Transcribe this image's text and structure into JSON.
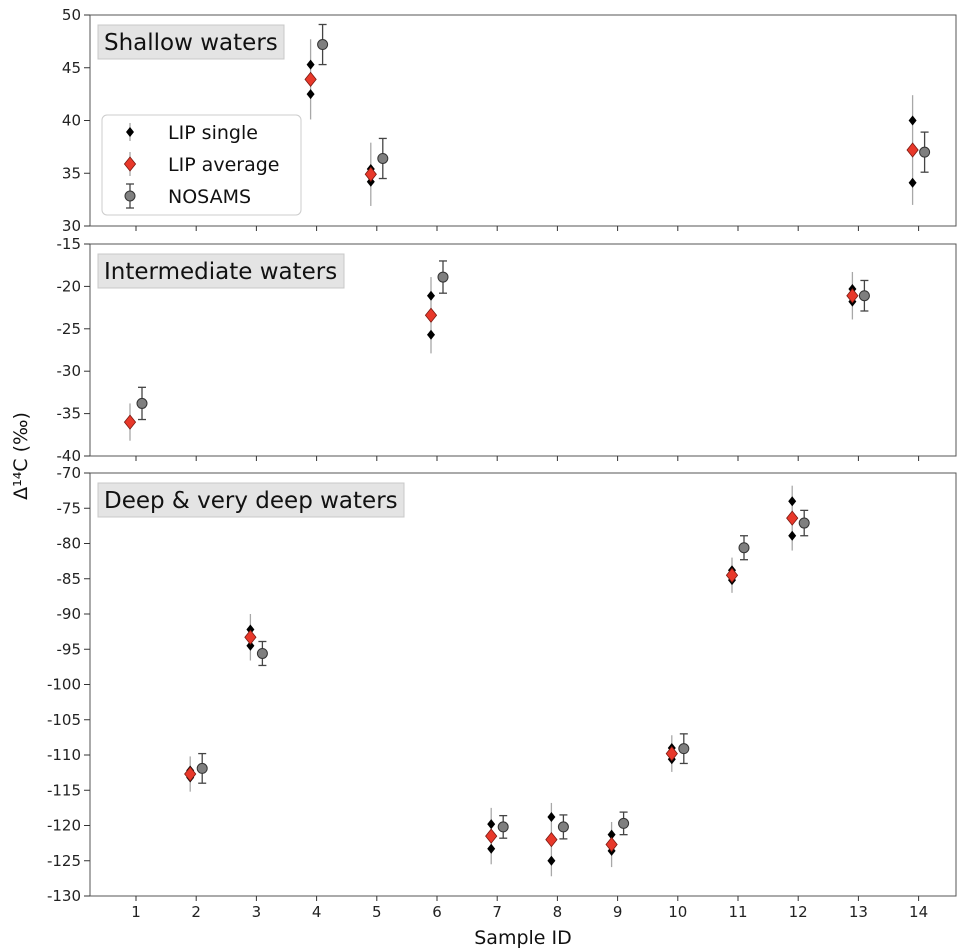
{
  "chart_data": {
    "type": "scatter",
    "xlabel": "Sample ID",
    "ylabel": "Δ¹⁴C (‰)",
    "x_ticks": [
      1,
      2,
      3,
      4,
      5,
      6,
      7,
      8,
      9,
      10,
      11,
      12,
      13,
      14
    ],
    "legend": {
      "placement": "top-left of first panel",
      "entries": [
        {
          "name": "LIP single",
          "marker": "diamond",
          "color": "#000000"
        },
        {
          "name": "LIP average",
          "marker": "diamond",
          "color": "#e8382a"
        },
        {
          "name": "NOSAMS",
          "marker": "circle",
          "color": "#808080"
        }
      ]
    },
    "panels": [
      {
        "title": "Shallow waters",
        "ylim": [
          30,
          50
        ],
        "yticks": [
          30,
          35,
          40,
          45,
          50
        ],
        "lip_single": [
          {
            "x": 4,
            "y": 45.3
          },
          {
            "x": 4,
            "y": 42.5
          },
          {
            "x": 5,
            "y": 35.4
          },
          {
            "x": 5,
            "y": 34.2
          },
          {
            "x": 14,
            "y": 40.0
          },
          {
            "x": 14,
            "y": 34.1
          }
        ],
        "lip_average": [
          {
            "x": 4,
            "y": 43.9,
            "err": 3.8
          },
          {
            "x": 5,
            "y": 34.9,
            "err": 3.0
          },
          {
            "x": 14,
            "y": 37.2,
            "err": 5.2
          }
        ],
        "nosams": [
          {
            "x": 4,
            "y": 47.2,
            "err": 1.9
          },
          {
            "x": 5,
            "y": 36.4,
            "err": 1.9
          },
          {
            "x": 14,
            "y": 37.0,
            "err": 1.9
          }
        ]
      },
      {
        "title": "Intermediate waters",
        "ylim": [
          -40,
          -15
        ],
        "yticks": [
          -40,
          -35,
          -30,
          -25,
          -20,
          -15
        ],
        "lip_single": [
          {
            "x": 1,
            "y": -36.0
          },
          {
            "x": 6,
            "y": -21.1
          },
          {
            "x": 6,
            "y": -25.7
          },
          {
            "x": 13,
            "y": -20.3
          },
          {
            "x": 13,
            "y": -21.8
          }
        ],
        "lip_average": [
          {
            "x": 1,
            "y": -36.0,
            "err": 2.2
          },
          {
            "x": 6,
            "y": -23.4,
            "err": 4.5
          },
          {
            "x": 13,
            "y": -21.1,
            "err": 2.8
          }
        ],
        "nosams": [
          {
            "x": 1,
            "y": -33.8,
            "err": 1.9
          },
          {
            "x": 6,
            "y": -18.9,
            "err": 1.9
          },
          {
            "x": 13,
            "y": -21.1,
            "err": 1.8
          }
        ]
      },
      {
        "title": "Deep & very deep waters",
        "ylim": [
          -130,
          -70
        ],
        "yticks": [
          -130,
          -125,
          -120,
          -115,
          -110,
          -105,
          -100,
          -95,
          -90,
          -85,
          -80,
          -75,
          -70
        ],
        "lip_single": [
          {
            "x": 2,
            "y": -112.2
          },
          {
            "x": 2,
            "y": -113.2
          },
          {
            "x": 3,
            "y": -92.2
          },
          {
            "x": 3,
            "y": -94.5
          },
          {
            "x": 7,
            "y": -119.8
          },
          {
            "x": 7,
            "y": -123.3
          },
          {
            "x": 8,
            "y": -118.8
          },
          {
            "x": 8,
            "y": -125.0
          },
          {
            "x": 9,
            "y": -121.3
          },
          {
            "x": 9,
            "y": -123.6
          },
          {
            "x": 10,
            "y": -109.0
          },
          {
            "x": 10,
            "y": -110.6
          },
          {
            "x": 11,
            "y": -83.8
          },
          {
            "x": 11,
            "y": -85.2
          },
          {
            "x": 12,
            "y": -74.0
          },
          {
            "x": 12,
            "y": -78.9
          }
        ],
        "lip_average": [
          {
            "x": 2,
            "y": -112.7,
            "err": 2.5
          },
          {
            "x": 3,
            "y": -93.3,
            "err": 3.3
          },
          {
            "x": 7,
            "y": -121.5,
            "err": 4.0
          },
          {
            "x": 8,
            "y": -122.0,
            "err": 5.2
          },
          {
            "x": 9,
            "y": -122.7,
            "err": 3.2
          },
          {
            "x": 10,
            "y": -109.8,
            "err": 2.6
          },
          {
            "x": 11,
            "y": -84.5,
            "err": 2.5
          },
          {
            "x": 12,
            "y": -76.4,
            "err": 4.6
          }
        ],
        "nosams": [
          {
            "x": 2,
            "y": -111.9,
            "err": 2.1
          },
          {
            "x": 3,
            "y": -95.6,
            "err": 1.7
          },
          {
            "x": 7,
            "y": -120.2,
            "err": 1.6
          },
          {
            "x": 8,
            "y": -120.2,
            "err": 1.7
          },
          {
            "x": 9,
            "y": -119.7,
            "err": 1.6
          },
          {
            "x": 10,
            "y": -109.1,
            "err": 2.1
          },
          {
            "x": 11,
            "y": -80.6,
            "err": 1.7
          },
          {
            "x": 12,
            "y": -77.1,
            "err": 1.8
          }
        ]
      }
    ]
  }
}
